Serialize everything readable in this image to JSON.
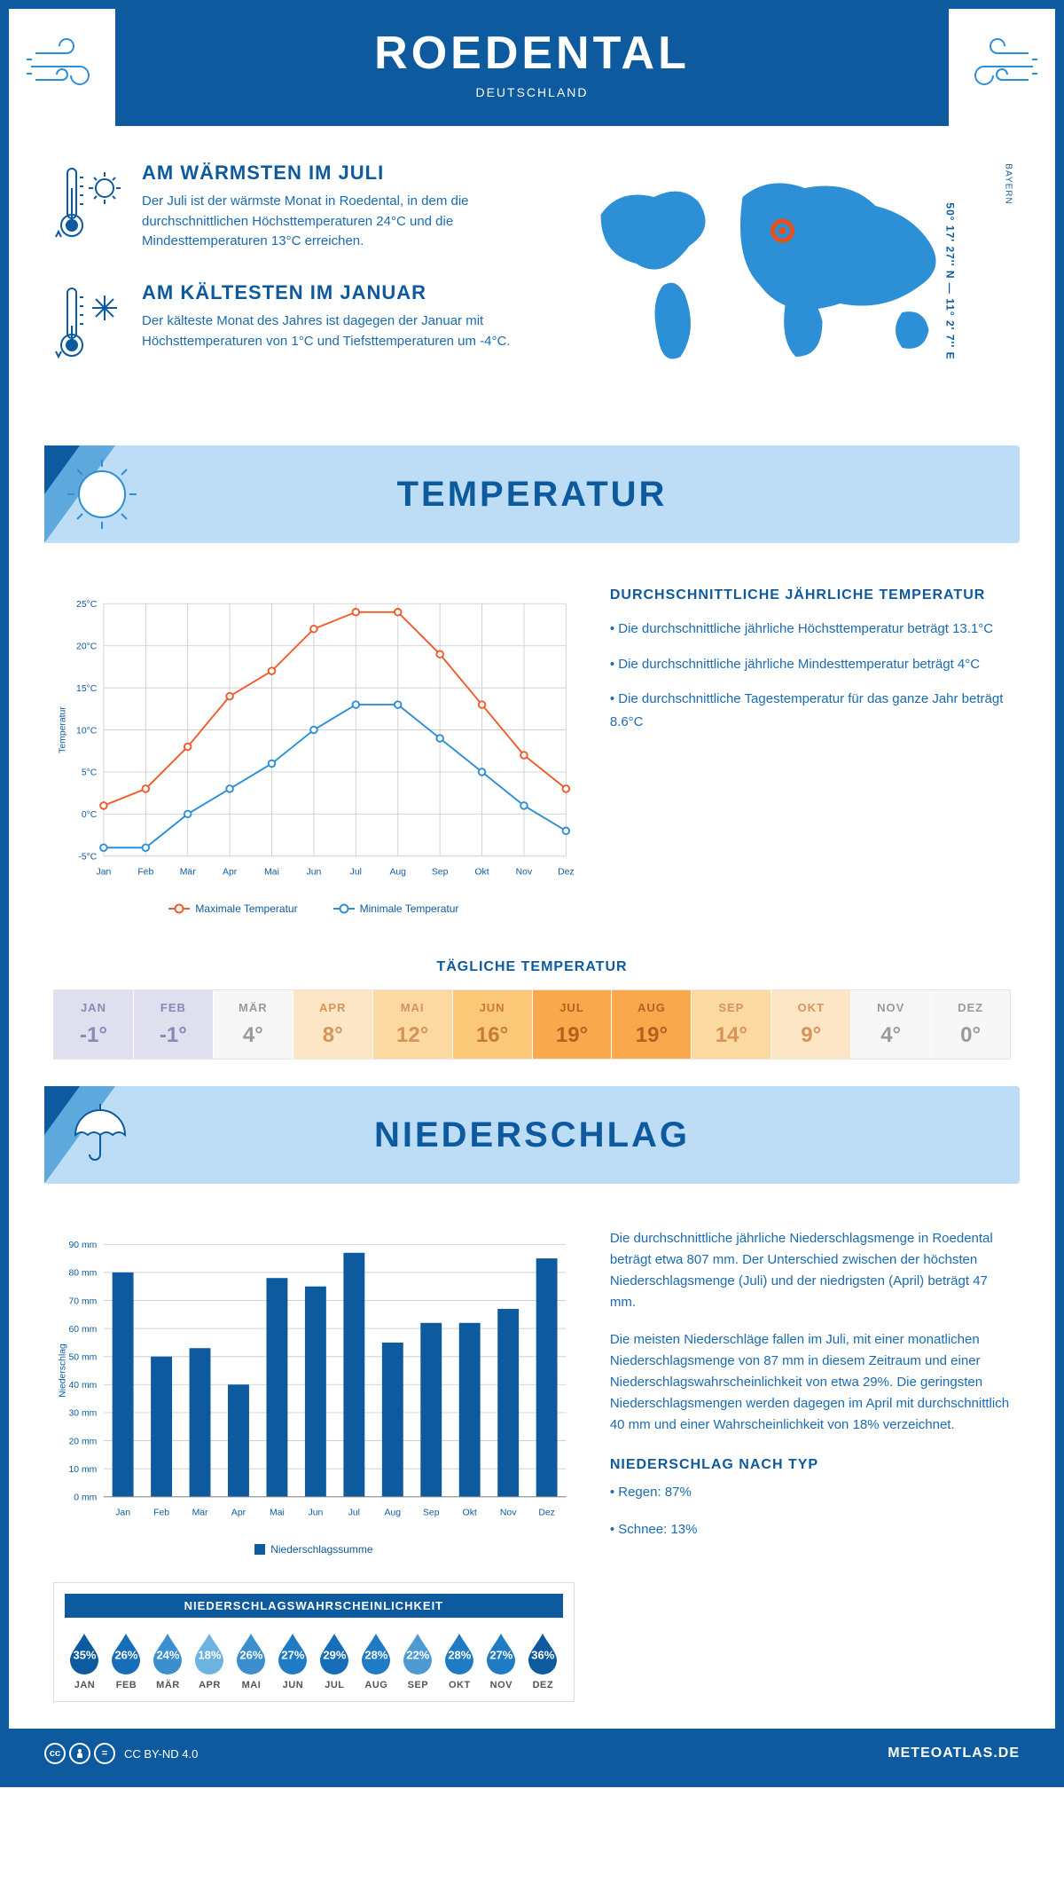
{
  "header": {
    "title": "ROEDENTAL",
    "subtitle": "DEUTSCHLAND"
  },
  "location": {
    "coords": "50° 17' 27'' N — 11° 2' 7'' E",
    "region": "BAYERN",
    "marker_color": "#e94e1b"
  },
  "warmest": {
    "title": "AM WÄRMSTEN IM JULI",
    "text": "Der Juli ist der wärmste Monat in Roedental, in dem die durchschnittlichen Höchsttemperaturen 24°C und die Mindesttemperaturen 13°C erreichen."
  },
  "coldest": {
    "title": "AM KÄLTESTEN IM JANUAR",
    "text": "Der kälteste Monat des Jahres ist dagegen der Januar mit Höchsttemperaturen von 1°C und Tiefsttemperaturen um -4°C."
  },
  "temperature": {
    "section_title": "TEMPERATUR",
    "info_title": "DURCHSCHNITTLICHE JÄHRLICHE TEMPERATUR",
    "info_lines": [
      "• Die durchschnittliche jährliche Höchsttemperatur beträgt 13.1°C",
      "• Die durchschnittliche jährliche Mindesttemperatur beträgt 4°C",
      "• Die durchschnittliche Tagestemperatur für das ganze Jahr beträgt 8.6°C"
    ],
    "chart": {
      "months": [
        "Jan",
        "Feb",
        "Mär",
        "Apr",
        "Mai",
        "Jun",
        "Jul",
        "Aug",
        "Sep",
        "Okt",
        "Nov",
        "Dez"
      ],
      "max_series": {
        "label": "Maximale Temperatur",
        "color": "#f15a29",
        "values": [
          1,
          3,
          8,
          14,
          17,
          22,
          24,
          24,
          19,
          13,
          7,
          3
        ]
      },
      "min_series": {
        "label": "Minimale Temperatur",
        "color": "#2d8fd6",
        "values": [
          -4,
          -4,
          0,
          3,
          6,
          10,
          13,
          13,
          9,
          5,
          1,
          -2
        ]
      },
      "ylabel": "Temperatur",
      "ylim": [
        -5,
        25
      ],
      "ytick_step": 5,
      "ytick_suffix": "°C",
      "grid_color": "#d0d0d0",
      "line_width": 2,
      "marker_size": 4
    },
    "daily_title": "TÄGLICHE TEMPERATUR",
    "daily": {
      "months": [
        "JAN",
        "FEB",
        "MÄR",
        "APR",
        "MAI",
        "JUN",
        "JUL",
        "AUG",
        "SEP",
        "OKT",
        "NOV",
        "DEZ"
      ],
      "values": [
        "-1°",
        "-1°",
        "4°",
        "8°",
        "12°",
        "16°",
        "19°",
        "19°",
        "14°",
        "9°",
        "4°",
        "0°"
      ],
      "bg_colors": [
        "#e0dff0",
        "#e0dff0",
        "#f7f7f7",
        "#fce6c5",
        "#fcd9a0",
        "#fbc877",
        "#f9a94b",
        "#f9a94b",
        "#fcd9a0",
        "#fce6c5",
        "#f7f7f7",
        "#f7f7f7"
      ],
      "text_colors": [
        "#8a88b5",
        "#8a88b5",
        "#9a9a9a",
        "#d4945a",
        "#d4945a",
        "#c77a3a",
        "#b85f1f",
        "#b85f1f",
        "#d4945a",
        "#d4945a",
        "#9a9a9a",
        "#9a9a9a"
      ]
    }
  },
  "precipitation": {
    "section_title": "NIEDERSCHLAG",
    "text1": "Die durchschnittliche jährliche Niederschlagsmenge in Roedental beträgt etwa 807 mm. Der Unterschied zwischen der höchsten Niederschlagsmenge (Juli) und der niedrigsten (April) beträgt 47 mm.",
    "text2": "Die meisten Niederschläge fallen im Juli, mit einer monatlichen Niederschlagsmenge von 87 mm in diesem Zeitraum und einer Niederschlagswahrscheinlichkeit von etwa 29%. Die geringsten Niederschlagsmengen werden dagegen im April mit durchschnittlich 40 mm und einer Wahrscheinlichkeit von 18% verzeichnet.",
    "type_title": "NIEDERSCHLAG NACH TYP",
    "type_lines": [
      "• Regen: 87%",
      "• Schnee: 13%"
    ],
    "chart": {
      "months": [
        "Jan",
        "Feb",
        "Mär",
        "Apr",
        "Mai",
        "Jun",
        "Jul",
        "Aug",
        "Sep",
        "Okt",
        "Nov",
        "Dez"
      ],
      "values": [
        80,
        50,
        53,
        40,
        78,
        75,
        87,
        55,
        62,
        62,
        67,
        85
      ],
      "bar_color": "#0d5a9e",
      "ylabel": "Niederschlag",
      "legend_label": "Niederschlagssumme",
      "ylim": [
        0,
        90
      ],
      "ytick_step": 10,
      "ytick_suffix": " mm",
      "grid_color": "#d0d0d0",
      "bar_width": 0.55
    },
    "prob": {
      "title": "NIEDERSCHLAGSWAHRSCHEINLICHKEIT",
      "months": [
        "JAN",
        "FEB",
        "MÄR",
        "APR",
        "MAI",
        "JUN",
        "JUL",
        "AUG",
        "SEP",
        "OKT",
        "NOV",
        "DEZ"
      ],
      "values": [
        "35%",
        "26%",
        "24%",
        "18%",
        "26%",
        "27%",
        "29%",
        "28%",
        "22%",
        "28%",
        "27%",
        "36%"
      ],
      "colors": [
        "#0d5a9e",
        "#166eb8",
        "#3b8fce",
        "#6bb4e0",
        "#3b8fce",
        "#1f7cc4",
        "#166eb8",
        "#1f7cc4",
        "#4e9bd3",
        "#1f7cc4",
        "#1f7cc4",
        "#0d5a9e"
      ]
    }
  },
  "footer": {
    "license": "CC BY-ND 4.0",
    "site": "METEOATLAS.DE"
  }
}
